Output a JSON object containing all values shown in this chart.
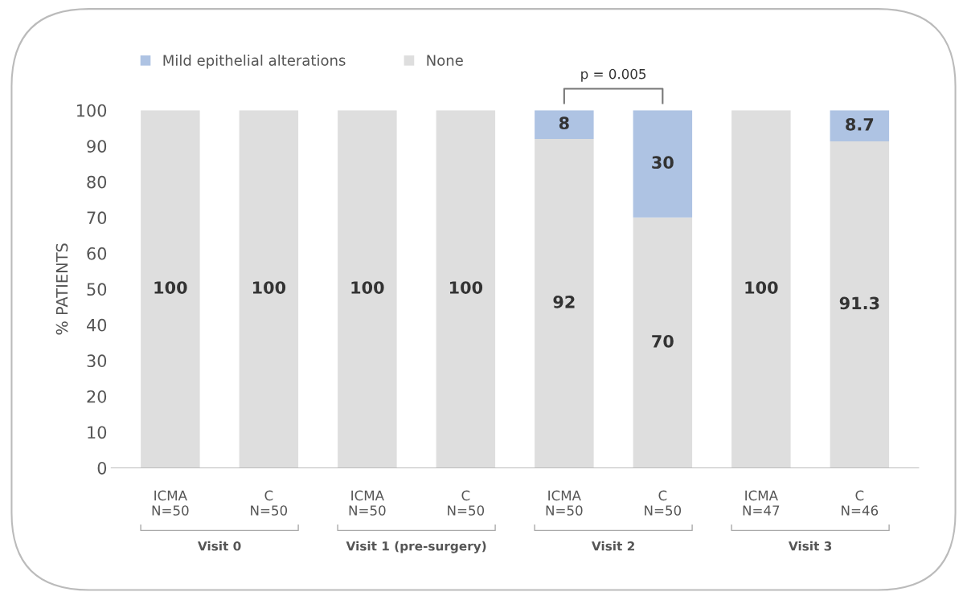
{
  "chart_data": {
    "type": "bar",
    "stacked": true,
    "ylabel": "% PATIENTS",
    "categories": [
      "ICMA\nN=50",
      "C\nN=50",
      "ICMA\nN=50",
      "C\nN=50",
      "ICMA\nN=50",
      "C\nN=50",
      "ICMA\nN=47",
      "C\nN=46"
    ],
    "series": [
      {
        "name": "None",
        "color": "#dedede",
        "values": [
          100,
          100,
          100,
          100,
          92,
          70,
          100,
          91.3
        ],
        "value_labels": [
          "100",
          "100",
          "100",
          "100",
          "92",
          "70",
          "100",
          "91.3"
        ]
      },
      {
        "name": "Mild epithelial alterations",
        "color": "#aec3e3",
        "values": [
          0,
          0,
          0,
          0,
          8,
          30,
          0,
          8.7
        ],
        "value_labels": [
          null,
          null,
          null,
          null,
          "8",
          "30",
          null,
          "8.7"
        ]
      }
    ],
    "ylim": [
      0,
      100
    ],
    "yticks": [
      0,
      10,
      20,
      30,
      40,
      50,
      60,
      70,
      80,
      90,
      100
    ],
    "grid": false,
    "legend": "top",
    "annotations": [
      "Visit 0",
      "Visit 1 (pre-surgery)",
      "Visit 2",
      "Visit 3",
      "p = 0.005"
    ]
  }
}
